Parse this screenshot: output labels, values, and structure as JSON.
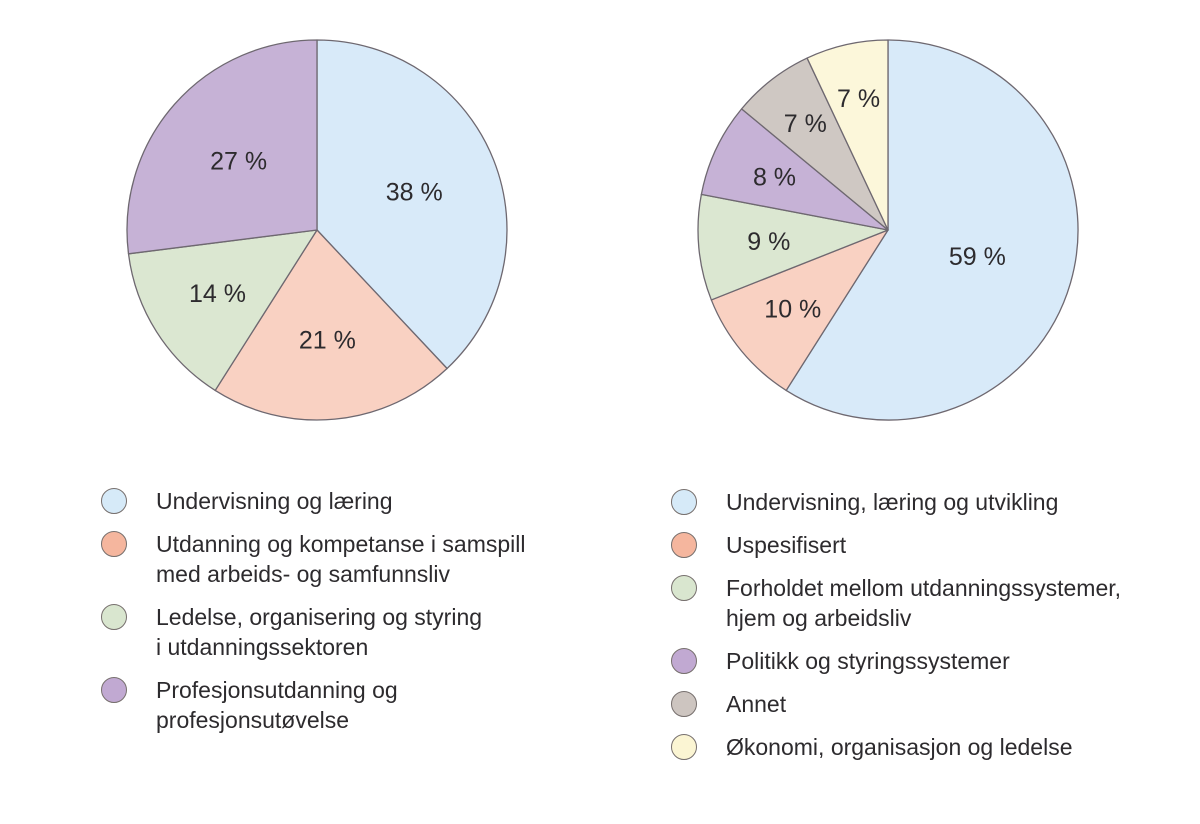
{
  "page": {
    "background": "#ffffff",
    "text_color": "#2d2b2e",
    "slice_stroke_color": "#6e6870",
    "swatch_border_color": "#766f6d"
  },
  "chart_data": [
    {
      "type": "pie",
      "title": "",
      "position": "left",
      "start_angle_deg": 0,
      "direction": "clockwise",
      "legend_position": "below",
      "slices": [
        {
          "label": "Undervisning og læring",
          "value": 38,
          "display": "38 %",
          "color": "#d8eaf9",
          "legend_color": "#d6eaf8",
          "label_r": 0.55
        },
        {
          "label": "Utdanning og kompetanse i samspill\nmed arbeids- og samfunnsliv",
          "value": 21,
          "display": "21 %",
          "color": "#f9d1c2",
          "legend_color": "#f5b69e",
          "label_r": 0.58
        },
        {
          "label": "Ledelse, organisering og styring\ni utdanningssektoren",
          "value": 14,
          "display": "14 %",
          "color": "#dbe7d1",
          "legend_color": "#d9e6cf",
          "label_r": 0.62
        },
        {
          "label": "Profesjonsutdanning og\nprofesjonsutøvelse",
          "value": 27,
          "display": "27 %",
          "color": "#c6b2d6",
          "legend_color": "#c1a9d2",
          "label_r": 0.55
        }
      ]
    },
    {
      "type": "pie",
      "title": "",
      "position": "right",
      "start_angle_deg": 0,
      "direction": "clockwise",
      "legend_position": "below",
      "slices": [
        {
          "label": "Undervisning, læring og utvikling",
          "value": 59,
          "display": "59 %",
          "color": "#d8eaf9",
          "legend_color": "#d6eaf8",
          "label_r": 0.49
        },
        {
          "label": "Uspesifisert",
          "value": 10,
          "display": "10 %",
          "color": "#f9d1c2",
          "legend_color": "#f5b69e",
          "label_r": 0.65
        },
        {
          "label": "Forholdet mellom utdanningssystemer,\nhjem og arbeidsliv",
          "value": 9,
          "display": "9 %",
          "color": "#dbe7d1",
          "legend_color": "#d9e6cf",
          "label_r": 0.63
        },
        {
          "label": "Politikk og styringssystemer",
          "value": 8,
          "display": "8 %",
          "color": "#c6b2d6",
          "legend_color": "#c1a9d2",
          "label_r": 0.66
        },
        {
          "label": "Annet",
          "value": 7,
          "display": "7 %",
          "color": "#cfc8c3",
          "legend_color": "#cdc5c0",
          "label_r": 0.71
        },
        {
          "label": "Økonomi, organisasjon og ledelse",
          "value": 7,
          "display": "7 %",
          "color": "#fcf7da",
          "legend_color": "#fbf5d3",
          "label_r": 0.71
        }
      ]
    }
  ]
}
